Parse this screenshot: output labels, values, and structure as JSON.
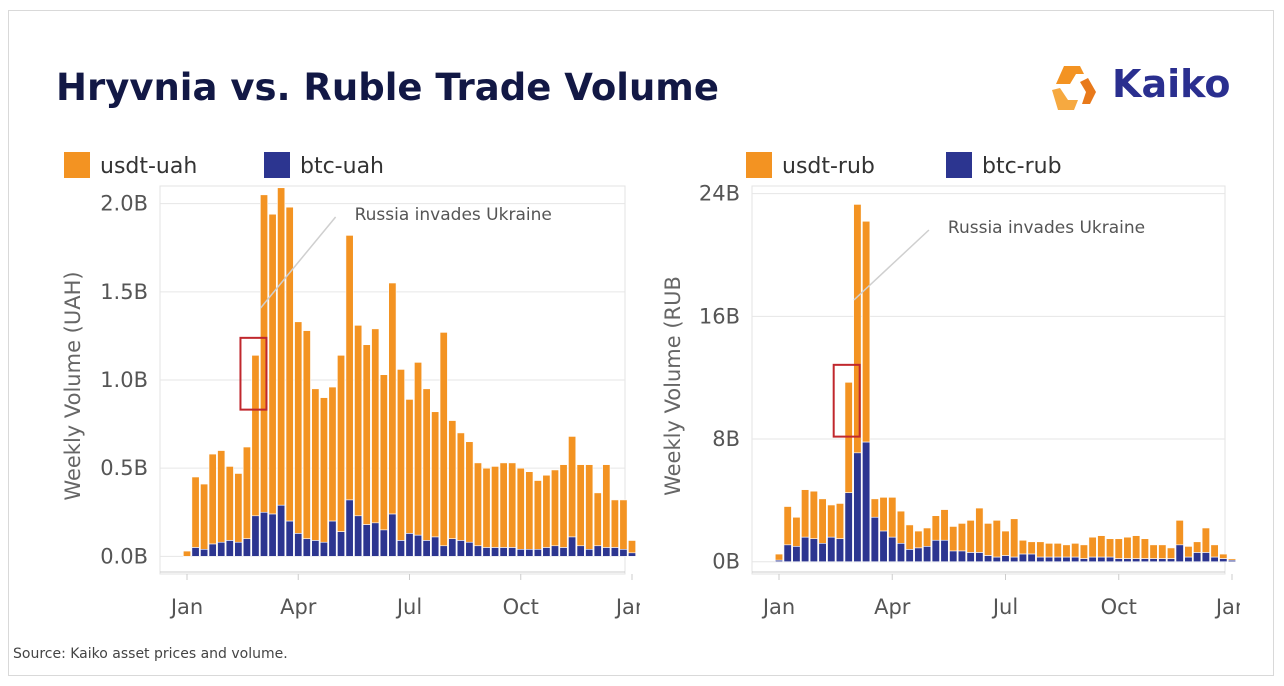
{
  "title": "Hryvnia vs. Ruble Trade Volume",
  "logo_text": "Kaiko",
  "source": "Source: Kaiko asset prices and volume.",
  "colors": {
    "orange": "#f39322",
    "navy": "#2c3590",
    "title": "#121845",
    "annotation_box": "#c0272d"
  },
  "chart_data": [
    {
      "type": "bar",
      "stacked": true,
      "grid": true,
      "legend_position": "top-left",
      "ylabel": "Weekly Volume (UAH)",
      "y_ticks": [
        "0.0B",
        "0.5B",
        "1.0B",
        "1.5B",
        "2.0B"
      ],
      "y_tick_values": [
        0,
        0.5,
        1.0,
        1.5,
        2.0
      ],
      "ylim": [
        -0.1,
        2.1
      ],
      "x_ticks": [
        "Jan",
        "Apr",
        "Jul",
        "Oct",
        "Jan"
      ],
      "x_tick_weeks": [
        0,
        13,
        26,
        39,
        52
      ],
      "annotation": "Russia invades Ukraine",
      "highlight_week": 8,
      "series": [
        {
          "name": "usdt-uah",
          "values": [
            0.03,
            0.4,
            0.37,
            0.51,
            0.52,
            0.42,
            0.39,
            0.52,
            0.91,
            1.8,
            1.7,
            1.8,
            1.78,
            1.2,
            1.18,
            0.86,
            0.82,
            0.76,
            1.0,
            1.5,
            1.08,
            1.02,
            1.1,
            0.88,
            1.31,
            0.97,
            0.76,
            0.98,
            0.86,
            0.71,
            1.21,
            0.67,
            0.61,
            0.57,
            0.47,
            0.45,
            0.46,
            0.48,
            0.48,
            0.46,
            0.44,
            0.39,
            0.41,
            0.43,
            0.47,
            0.57,
            0.46,
            0.48,
            0.3,
            0.47,
            0.27,
            0.28,
            0.07
          ]
        },
        {
          "name": "btc-uah",
          "values": [
            0.0,
            0.05,
            0.04,
            0.07,
            0.08,
            0.09,
            0.08,
            0.1,
            0.23,
            0.25,
            0.24,
            0.29,
            0.2,
            0.13,
            0.1,
            0.09,
            0.08,
            0.2,
            0.14,
            0.32,
            0.23,
            0.18,
            0.19,
            0.15,
            0.24,
            0.09,
            0.13,
            0.12,
            0.09,
            0.11,
            0.06,
            0.1,
            0.09,
            0.08,
            0.06,
            0.05,
            0.05,
            0.05,
            0.05,
            0.04,
            0.04,
            0.04,
            0.05,
            0.06,
            0.05,
            0.11,
            0.06,
            0.04,
            0.06,
            0.05,
            0.05,
            0.04,
            0.02
          ]
        }
      ]
    },
    {
      "type": "bar",
      "stacked": true,
      "grid": true,
      "legend_position": "top-left",
      "ylabel": "Weekly Volume (RUB",
      "y_ticks": [
        "0B",
        "8B",
        "16B",
        "24B"
      ],
      "y_tick_values": [
        0,
        8,
        16,
        24
      ],
      "ylim": [
        -0.8,
        24.5
      ],
      "x_ticks": [
        "Jan",
        "Apr",
        "Jul",
        "Oct",
        "Jan"
      ],
      "x_tick_weeks": [
        0,
        13,
        26,
        39,
        52
      ],
      "annotation": "Russia invades Ukraine",
      "highlight_week": 8,
      "series": [
        {
          "name": "usdt-rub",
          "values": [
            0.4,
            2.5,
            1.9,
            3.1,
            3.1,
            2.9,
            2.1,
            2.3,
            7.2,
            16.2,
            14.4,
            1.2,
            2.2,
            2.6,
            2.1,
            1.6,
            1.1,
            1.2,
            1.6,
            2.0,
            1.6,
            1.8,
            2.1,
            2.9,
            2.1,
            2.4,
            1.6,
            2.5,
            0.9,
            0.8,
            1.0,
            0.9,
            0.9,
            0.8,
            0.9,
            0.9,
            1.3,
            1.4,
            1.2,
            1.3,
            1.4,
            1.5,
            1.3,
            0.9,
            0.9,
            0.7,
            1.6,
            0.7,
            0.7,
            1.6,
            0.8,
            0.3,
            0.1
          ]
        },
        {
          "name": "btc-rub",
          "values": [
            0.1,
            1.1,
            1.0,
            1.6,
            1.5,
            1.2,
            1.6,
            1.5,
            4.5,
            7.1,
            7.8,
            2.9,
            2.0,
            1.6,
            1.2,
            0.8,
            0.9,
            1.0,
            1.4,
            1.4,
            0.7,
            0.7,
            0.6,
            0.6,
            0.4,
            0.3,
            0.4,
            0.3,
            0.5,
            0.5,
            0.3,
            0.3,
            0.3,
            0.3,
            0.3,
            0.2,
            0.3,
            0.3,
            0.3,
            0.2,
            0.2,
            0.2,
            0.2,
            0.2,
            0.2,
            0.2,
            1.1,
            0.3,
            0.6,
            0.6,
            0.3,
            0.2,
            0.1
          ]
        }
      ]
    }
  ]
}
